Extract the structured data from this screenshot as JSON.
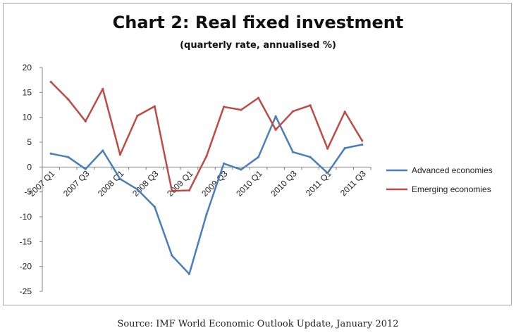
{
  "chart_data": {
    "type": "line",
    "title": "Chart 2: Real fixed investment",
    "subtitle": "(quarterly rate, annualised %)",
    "x": [
      "2007 Q1",
      "2007 Q2",
      "2007 Q3",
      "2007 Q4",
      "2008 Q1",
      "2008 Q2",
      "2008 Q3",
      "2008 Q4",
      "2009 Q1",
      "2009 Q2",
      "2009 Q3",
      "2009 Q4",
      "2010 Q1",
      "2010 Q2",
      "2010 Q3",
      "2010 Q4",
      "2011 Q1",
      "2011 Q2",
      "2011 Q3"
    ],
    "x_tick_labels": [
      "2007 Q1",
      "2007 Q3",
      "2008 Q1",
      "2008 Q3",
      "2009 Q1",
      "2009 Q3",
      "2010 Q1",
      "2010 Q3",
      "2011 Q1",
      "2011 Q3"
    ],
    "ylim": [
      -25,
      20
    ],
    "y_ticks": [
      -25,
      -20,
      -15,
      -10,
      -5,
      0,
      5,
      10,
      15,
      20
    ],
    "grid": false,
    "legend_position": "right",
    "series": [
      {
        "name": "Advanced economies",
        "color": "#4a7ebb",
        "values": [
          2.7,
          2.0,
          -0.4,
          3.3,
          -2.4,
          -4.5,
          -8.0,
          -17.8,
          -21.5,
          -9.5,
          0.7,
          -0.5,
          2.0,
          10.2,
          3.0,
          2.0,
          -1.2,
          3.8,
          4.5
        ]
      },
      {
        "name": "Emerging economies",
        "color": "#be4b48",
        "values": [
          17.1,
          13.6,
          9.2,
          15.7,
          2.5,
          10.3,
          12.2,
          -4.8,
          -4.7,
          2.2,
          12.1,
          11.5,
          13.9,
          7.5,
          11.2,
          12.4,
          3.7,
          11.1,
          5.3
        ]
      }
    ]
  },
  "source": "Source: IMF World Economic Outlook Update, January 2012"
}
